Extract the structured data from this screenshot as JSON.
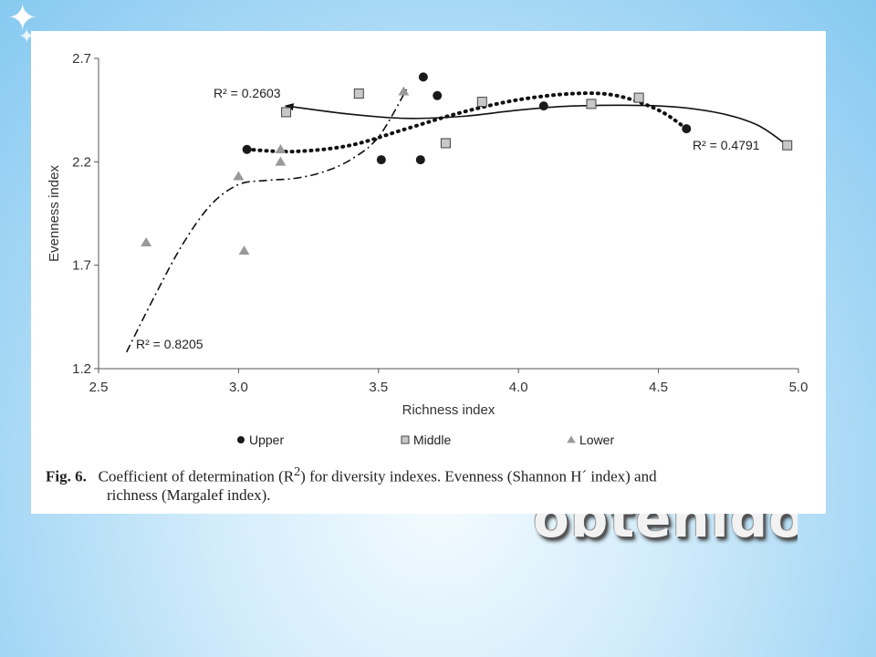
{
  "slide": {
    "bottom_text": "obtenidos?",
    "star_glyph": "✦"
  },
  "caption": {
    "label": "Fig. 6.",
    "text": "Coefficient of determination (R",
    "sup": "2",
    "text_rest": ") for diversity indexes. Evenness (Shannon H´ index) and",
    "line2": "richness (Margalef index)."
  },
  "chart_data": {
    "type": "scatter",
    "xlabel": "Richness index",
    "ylabel": "Evenness index",
    "xlim": [
      2.5,
      5.0
    ],
    "ylim": [
      1.2,
      2.7
    ],
    "xticks": [
      "2.5",
      "3.0",
      "3.5",
      "4.0",
      "4.5",
      "5.0"
    ],
    "yticks": [
      "1.2",
      "1.7",
      "2.2",
      "2.7"
    ],
    "grid": false,
    "legend_position": "bottom",
    "series": [
      {
        "name": "Upper",
        "marker": "circle",
        "color": "#1a1a1a",
        "points": [
          [
            3.03,
            2.26
          ],
          [
            3.51,
            2.21
          ],
          [
            3.65,
            2.21
          ],
          [
            3.66,
            2.61
          ],
          [
            3.71,
            2.52
          ],
          [
            4.09,
            2.47
          ],
          [
            4.6,
            2.36
          ]
        ],
        "trend": {
          "label": "R² = 0.4791",
          "style": "dotted",
          "curve": [
            [
              3.03,
              2.26
            ],
            [
              3.2,
              2.25
            ],
            [
              3.4,
              2.28
            ],
            [
              3.6,
              2.36
            ],
            [
              3.8,
              2.44
            ],
            [
              4.0,
              2.5
            ],
            [
              4.2,
              2.53
            ],
            [
              4.35,
              2.52
            ],
            [
              4.5,
              2.45
            ],
            [
              4.6,
              2.36
            ]
          ]
        }
      },
      {
        "name": "Middle",
        "marker": "square",
        "color": "#aaaaaa",
        "points": [
          [
            3.17,
            2.44
          ],
          [
            3.43,
            2.53
          ],
          [
            3.74,
            2.29
          ],
          [
            3.87,
            2.49
          ],
          [
            4.26,
            2.48
          ],
          [
            4.43,
            2.51
          ],
          [
            4.96,
            2.28
          ]
        ],
        "trend": {
          "label": "R² = 0.2603",
          "style": "solid",
          "curve": [
            [
              4.96,
              2.28
            ],
            [
              4.85,
              2.38
            ],
            [
              4.7,
              2.44
            ],
            [
              4.5,
              2.47
            ],
            [
              4.2,
              2.47
            ],
            [
              4.0,
              2.45
            ],
            [
              3.8,
              2.42
            ],
            [
              3.6,
              2.41
            ],
            [
              3.4,
              2.43
            ],
            [
              3.17,
              2.47
            ]
          ]
        }
      },
      {
        "name": "Lower",
        "marker": "triangle",
        "color": "#999999",
        "points": [
          [
            2.67,
            1.81
          ],
          [
            3.0,
            2.13
          ],
          [
            3.02,
            1.77
          ],
          [
            3.15,
            2.26
          ],
          [
            3.15,
            2.2
          ],
          [
            3.59,
            2.54
          ]
        ],
        "trend": {
          "label": "R² = 0.8205",
          "style": "dashdot",
          "curve": [
            [
              2.6,
              1.28
            ],
            [
              2.7,
              1.55
            ],
            [
              2.8,
              1.8
            ],
            [
              2.9,
              1.99
            ],
            [
              3.0,
              2.09
            ],
            [
              3.1,
              2.11
            ],
            [
              3.2,
              2.12
            ],
            [
              3.3,
              2.15
            ],
            [
              3.4,
              2.21
            ],
            [
              3.5,
              2.32
            ],
            [
              3.6,
              2.55
            ]
          ]
        }
      }
    ]
  }
}
